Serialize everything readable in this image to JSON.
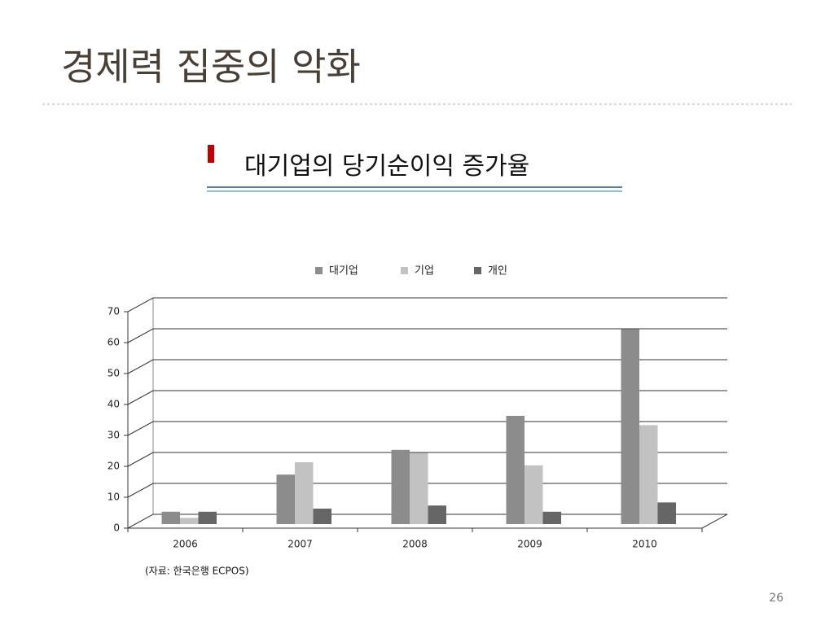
{
  "slide": {
    "title": "경제력 집중의 악화",
    "subtitle": "대기업의 당기순이익 증가율",
    "page_number": "26"
  },
  "chart_data": {
    "type": "bar",
    "source": "(자료: 한국은행 ECPOS)",
    "categories": [
      "2006",
      "2007",
      "2008",
      "2009",
      "2010"
    ],
    "series": [
      {
        "name": "대기업",
        "color": "#8c8c8c",
        "values": [
          4,
          16,
          24,
          35,
          63
        ]
      },
      {
        "name": "기업",
        "color": "#c2c2c2",
        "values": [
          2,
          20,
          23,
          19,
          32
        ]
      },
      {
        "name": "개인",
        "color": "#666666",
        "values": [
          4,
          5,
          6,
          4,
          7
        ]
      }
    ],
    "ylim": [
      0,
      70
    ],
    "yticks": [
      0,
      10,
      20,
      30,
      40,
      50,
      60,
      70
    ],
    "grid": true,
    "legend": "top"
  }
}
